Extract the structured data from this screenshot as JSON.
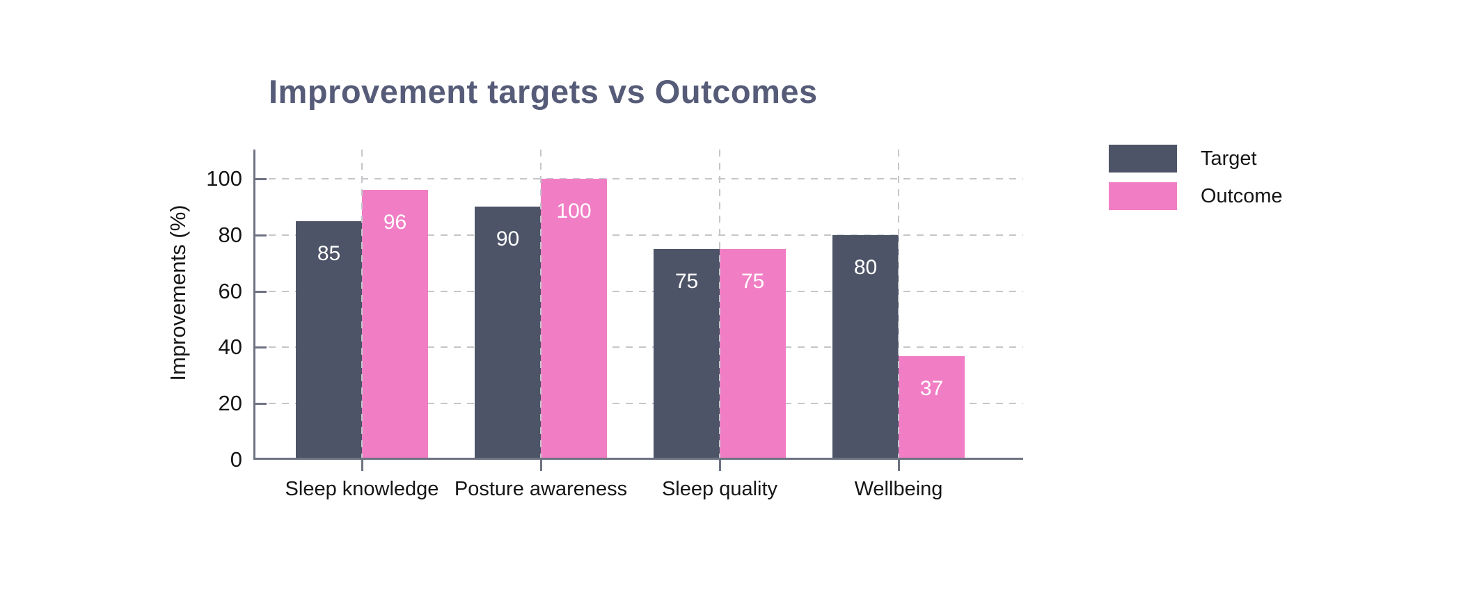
{
  "colors": {
    "target_bar": "#4d5467",
    "outcome_bar": "#f17ec5",
    "title_text": "#565c78",
    "axis": "#6e7383",
    "gridline": "#c6c6ca",
    "tick_text": "#161616",
    "bar_value_text": "#ffffff"
  },
  "chart_data": {
    "type": "bar",
    "title": "Improvement targets vs Outcomes",
    "categories": [
      "Sleep knowledge",
      "Posture awareness",
      "Sleep quality",
      "Wellbeing"
    ],
    "series": [
      {
        "name": "Target",
        "color_key": "target_bar",
        "values": [
          85,
          90,
          75,
          80
        ]
      },
      {
        "name": "Outcome",
        "color_key": "outcome_bar",
        "values": [
          96,
          100,
          75,
          37
        ]
      }
    ],
    "xlabel": "",
    "ylabel": "Improvements (%)",
    "ylim": [
      0,
      100
    ],
    "yticks": [
      0,
      20,
      40,
      60,
      80,
      100
    ],
    "grid": true,
    "gridline_style": "dashed",
    "bar_value_labels": true,
    "legend_position": "right"
  }
}
